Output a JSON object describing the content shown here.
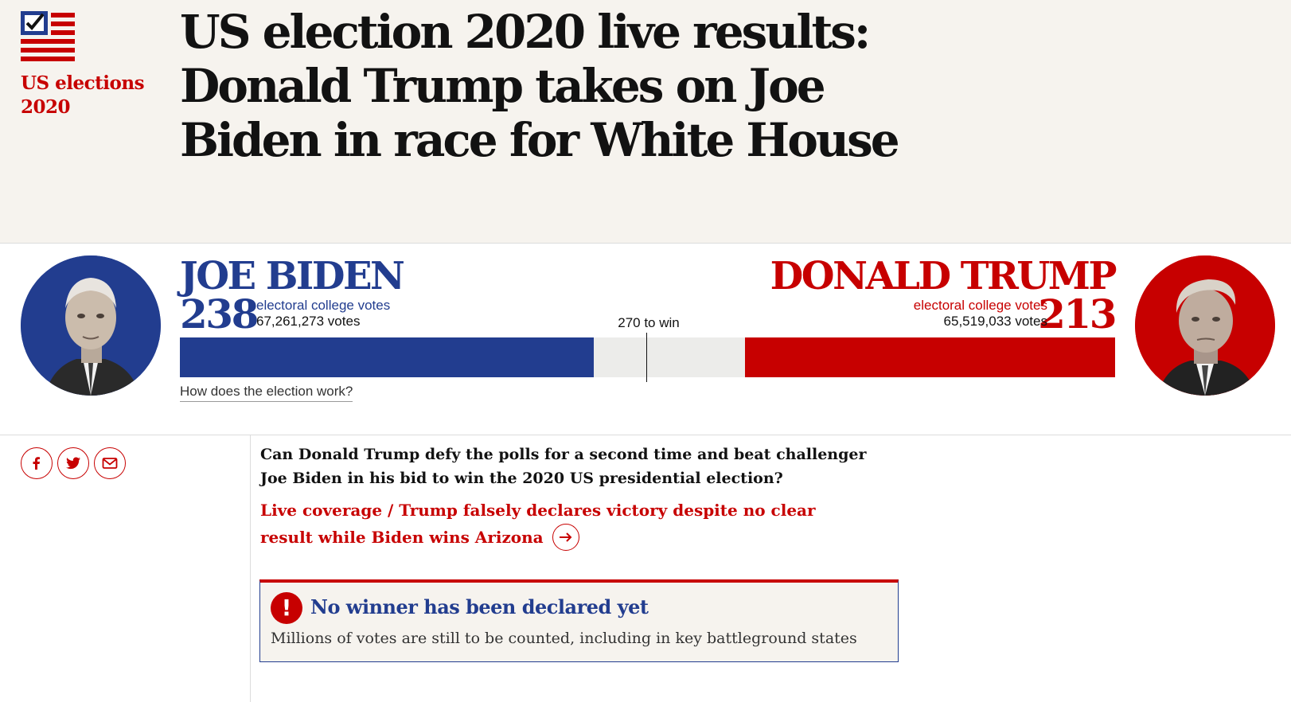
{
  "section": {
    "label": "US elections 2020",
    "colors": {
      "accent": "#c70000",
      "blue": "#223d8f",
      "header_bg": "#f6f3ee"
    }
  },
  "headline": "US election 2020 live results: Donald Trump takes on Joe Biden in race for White House",
  "results": {
    "threshold_label": "270 to win",
    "threshold": 270,
    "total_electoral_votes": 538,
    "how_link": "How does the election work?",
    "biden": {
      "name": "JOE BIDEN",
      "electoral_votes": 238,
      "electoral_votes_text": "238",
      "ec_label": "electoral college votes",
      "popular_votes": "67,261,273 votes",
      "color": "#223d8f"
    },
    "trump": {
      "name": "DONALD TRUMP",
      "electoral_votes": 213,
      "electoral_votes_text": "213",
      "ec_label": "electoral college votes",
      "popular_votes": "65,519,033 votes",
      "color": "#c70000"
    }
  },
  "share": {
    "icons": [
      "facebook-icon",
      "twitter-icon",
      "email-icon"
    ]
  },
  "article": {
    "standfirst": "Can Donald Trump defy the polls for a second time and beat challenger Joe Biden in his bid to win the 2020 US presidential election?",
    "live_link": "Live coverage / Trump falsely declares victory despite no clear result while Biden wins Arizona",
    "live_link_icon": "arrow-right-icon"
  },
  "notice": {
    "icon": "exclamation-icon",
    "title": "No winner has been declared yet",
    "body": "Millions of votes are still to be counted, including in key battleground states"
  }
}
